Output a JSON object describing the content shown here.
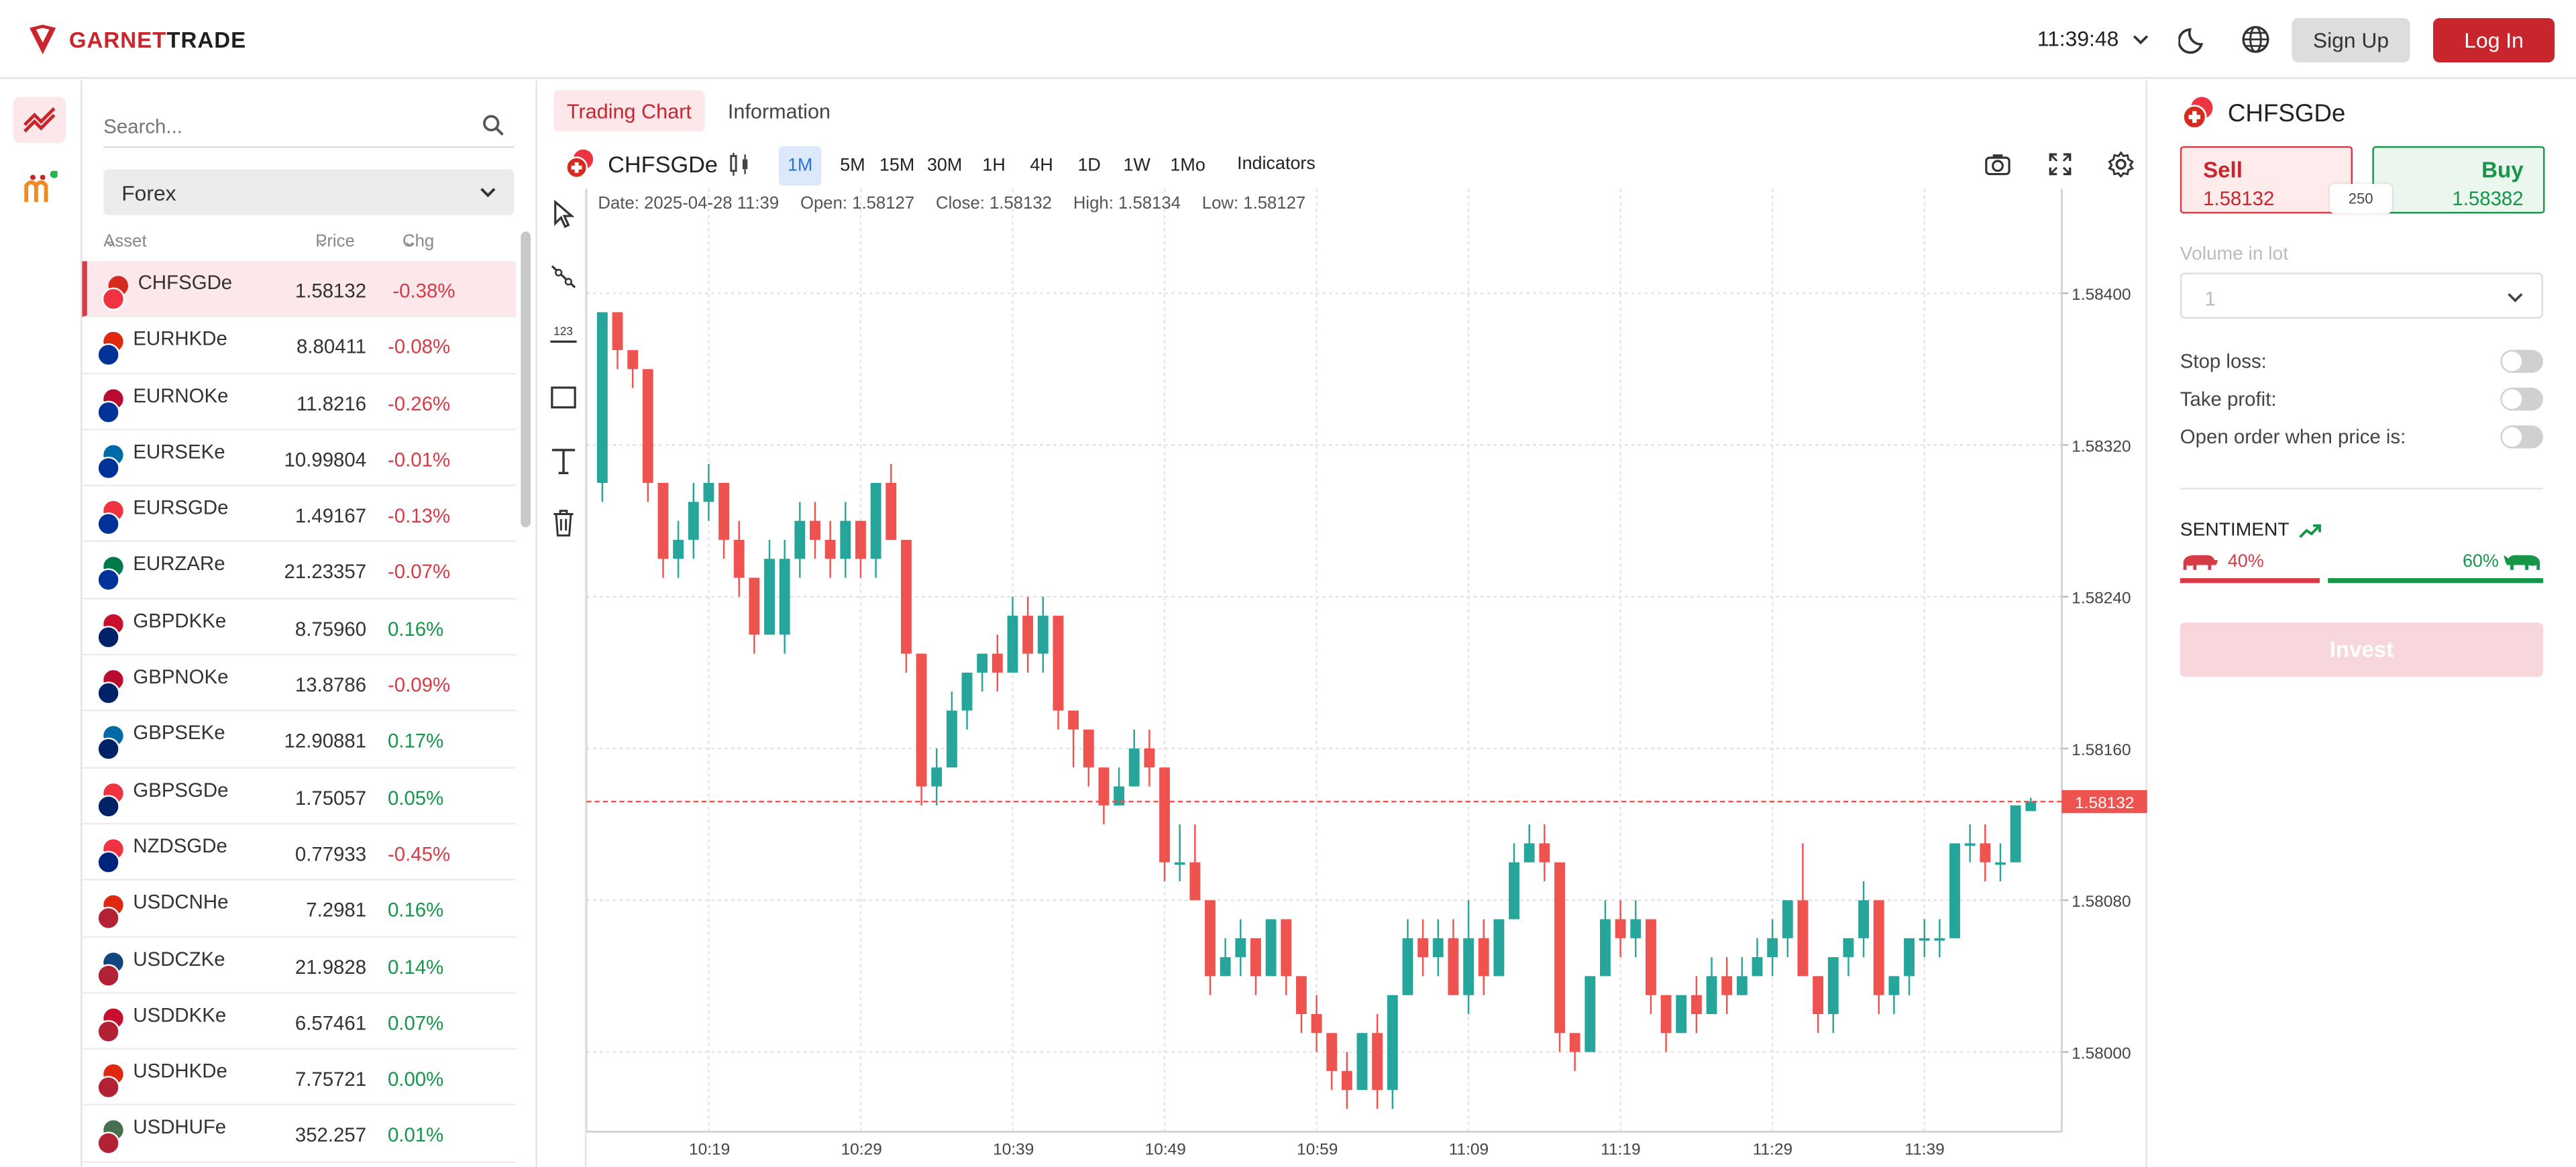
{
  "header": {
    "brand_prefix": "GARNET",
    "brand_suffix": "TRADE",
    "time": "11:39:48",
    "signup_label": "Sign Up",
    "login_label": "Log In"
  },
  "left_panel": {
    "search_placeholder": "Search...",
    "category": "Forex",
    "columns": {
      "asset": "Asset",
      "price": "Price",
      "chg": "Chg"
    },
    "rows": [
      {
        "name": "CHFSGDe",
        "price": "1.58132",
        "chg": "-0.38%",
        "up": false,
        "c1": "#d52b1e",
        "c2": "#ef3340"
      },
      {
        "name": "EURHKDe",
        "price": "8.80411",
        "chg": "-0.08%",
        "up": false,
        "c1": "#de2910",
        "c2": "#003399"
      },
      {
        "name": "EURNOKe",
        "price": "11.8216",
        "chg": "-0.26%",
        "up": false,
        "c1": "#ba0c2f",
        "c2": "#003399"
      },
      {
        "name": "EURSEKe",
        "price": "10.99804",
        "chg": "-0.01%",
        "up": false,
        "c1": "#006aa7",
        "c2": "#003399"
      },
      {
        "name": "EURSGDe",
        "price": "1.49167",
        "chg": "-0.13%",
        "up": false,
        "c1": "#ef3340",
        "c2": "#003399"
      },
      {
        "name": "EURZARe",
        "price": "21.23357",
        "chg": "-0.07%",
        "up": false,
        "c1": "#007a4d",
        "c2": "#003399"
      },
      {
        "name": "GBPDKKe",
        "price": "8.75960",
        "chg": "0.16%",
        "up": true,
        "c1": "#c8102e",
        "c2": "#012169"
      },
      {
        "name": "GBPNOKe",
        "price": "13.8786",
        "chg": "-0.09%",
        "up": false,
        "c1": "#ba0c2f",
        "c2": "#012169"
      },
      {
        "name": "GBPSEKe",
        "price": "12.90881",
        "chg": "0.17%",
        "up": true,
        "c1": "#006aa7",
        "c2": "#012169"
      },
      {
        "name": "GBPSGDe",
        "price": "1.75057",
        "chg": "0.05%",
        "up": true,
        "c1": "#ef3340",
        "c2": "#012169"
      },
      {
        "name": "NZDSGDe",
        "price": "0.77933",
        "chg": "-0.45%",
        "up": false,
        "c1": "#ef3340",
        "c2": "#00247d"
      },
      {
        "name": "USDCNHe",
        "price": "7.2981",
        "chg": "0.16%",
        "up": true,
        "c1": "#de2910",
        "c2": "#b22234"
      },
      {
        "name": "USDCZKe",
        "price": "21.9828",
        "chg": "0.14%",
        "up": true,
        "c1": "#11457e",
        "c2": "#b22234"
      },
      {
        "name": "USDDKKe",
        "price": "6.57461",
        "chg": "0.07%",
        "up": true,
        "c1": "#c8102e",
        "c2": "#b22234"
      },
      {
        "name": "USDHKDe",
        "price": "7.75721",
        "chg": "0.00%",
        "up": true,
        "c1": "#de2910",
        "c2": "#b22234"
      },
      {
        "name": "USDHUFe",
        "price": "352.257",
        "chg": "0.01%",
        "up": true,
        "c1": "#477050",
        "c2": "#b22234"
      }
    ]
  },
  "center": {
    "tab_chart": "Trading Chart",
    "tab_info": "Information",
    "symbol": "CHFSGDe",
    "timeframes": [
      "1M",
      "5M",
      "15M",
      "30M",
      "1H",
      "4H",
      "1D",
      "1W",
      "1Mo"
    ],
    "active_timeframe": "1M",
    "indicators_label": "Indicators",
    "info": {
      "date": "Date: 2025-04-28 11:39",
      "open": "Open: 1.58127",
      "close": "Close: 1.58132",
      "high": "High: 1.58134",
      "low": "Low: 1.58127"
    }
  },
  "chart_data": {
    "type": "candlestick",
    "x_ticks": [
      "10:19",
      "10:29",
      "10:39",
      "10:49",
      "10:59",
      "11:09",
      "11:19",
      "11:29",
      "11:39"
    ],
    "y_ticks": [
      "1.58400",
      "1.58320",
      "1.58240",
      "1.58160",
      "1.58080",
      "1.58000"
    ],
    "y_range": [
      1.57958,
      1.58455
    ],
    "current_price": "1.58132",
    "up_color": "#26a69a",
    "down_color": "#ef5350",
    "candles": [
      [
        1.583,
        1.5839,
        1.5839,
        1.5829
      ],
      [
        1.5839,
        1.5837,
        1.5839,
        1.5836
      ],
      [
        1.5837,
        1.5836,
        1.5837,
        1.5835
      ],
      [
        1.5836,
        1.583,
        1.5836,
        1.5829
      ],
      [
        1.583,
        1.5826,
        1.583,
        1.5825
      ],
      [
        1.5826,
        1.5827,
        1.5828,
        1.5825
      ],
      [
        1.5827,
        1.5829,
        1.583,
        1.5826
      ],
      [
        1.5829,
        1.583,
        1.5831,
        1.5828
      ],
      [
        1.583,
        1.5827,
        1.583,
        1.5826
      ],
      [
        1.5827,
        1.5825,
        1.5828,
        1.5824
      ],
      [
        1.5825,
        1.5822,
        1.5825,
        1.5821
      ],
      [
        1.5822,
        1.5826,
        1.5827,
        1.5822
      ],
      [
        1.5822,
        1.5826,
        1.5827,
        1.5821
      ],
      [
        1.5826,
        1.5828,
        1.5829,
        1.5825
      ],
      [
        1.5828,
        1.5827,
        1.5829,
        1.5826
      ],
      [
        1.5827,
        1.5826,
        1.5828,
        1.5825
      ],
      [
        1.5826,
        1.5828,
        1.5829,
        1.5825
      ],
      [
        1.5828,
        1.5826,
        1.5828,
        1.5825
      ],
      [
        1.5826,
        1.583,
        1.583,
        1.5825
      ],
      [
        1.583,
        1.5827,
        1.5831,
        1.5827
      ],
      [
        1.5827,
        1.5821,
        1.5827,
        1.582
      ],
      [
        1.5821,
        1.5814,
        1.5821,
        1.5813
      ],
      [
        1.5814,
        1.5815,
        1.5816,
        1.5813
      ],
      [
        1.5815,
        1.5818,
        1.5819,
        1.5815
      ],
      [
        1.5818,
        1.582,
        1.582,
        1.5817
      ],
      [
        1.582,
        1.5821,
        1.5821,
        1.5819
      ],
      [
        1.5821,
        1.582,
        1.5822,
        1.5819
      ],
      [
        1.582,
        1.5823,
        1.5824,
        1.582
      ],
      [
        1.5823,
        1.5821,
        1.5824,
        1.582
      ],
      [
        1.5821,
        1.5823,
        1.5824,
        1.582
      ],
      [
        1.5823,
        1.5818,
        1.5823,
        1.5817
      ],
      [
        1.5818,
        1.5817,
        1.5818,
        1.5815
      ],
      [
        1.5817,
        1.5815,
        1.5817,
        1.5814
      ],
      [
        1.5815,
        1.5813,
        1.5815,
        1.5812
      ],
      [
        1.5813,
        1.5814,
        1.5815,
        1.5813
      ],
      [
        1.5814,
        1.5816,
        1.5817,
        1.5814
      ],
      [
        1.5816,
        1.5815,
        1.5817,
        1.5814
      ],
      [
        1.5815,
        1.581,
        1.5815,
        1.5809
      ],
      [
        1.581,
        1.581,
        1.5812,
        1.5809
      ],
      [
        1.581,
        1.5808,
        1.5812,
        1.5808
      ],
      [
        1.5808,
        1.5804,
        1.5808,
        1.5803
      ],
      [
        1.5804,
        1.5805,
        1.5806,
        1.5804
      ],
      [
        1.5805,
        1.5806,
        1.5807,
        1.5804
      ],
      [
        1.5806,
        1.5804,
        1.5806,
        1.5803
      ],
      [
        1.5804,
        1.5807,
        1.5807,
        1.5804
      ],
      [
        1.5807,
        1.5804,
        1.5807,
        1.5803
      ],
      [
        1.5804,
        1.5802,
        1.5804,
        1.5801
      ],
      [
        1.5802,
        1.5801,
        1.5803,
        1.58
      ],
      [
        1.5801,
        1.5799,
        1.5801,
        1.5798
      ],
      [
        1.5799,
        1.5798,
        1.58,
        1.5797
      ],
      [
        1.5798,
        1.5801,
        1.5801,
        1.5798
      ],
      [
        1.5801,
        1.5798,
        1.5802,
        1.5797
      ],
      [
        1.5798,
        1.5803,
        1.5803,
        1.5797
      ],
      [
        1.5803,
        1.5806,
        1.5807,
        1.5803
      ],
      [
        1.5806,
        1.5805,
        1.5807,
        1.5804
      ],
      [
        1.5805,
        1.5806,
        1.5807,
        1.5804
      ],
      [
        1.5806,
        1.5803,
        1.5807,
        1.5803
      ],
      [
        1.5803,
        1.5806,
        1.5808,
        1.5802
      ],
      [
        1.5806,
        1.5804,
        1.5807,
        1.5803
      ],
      [
        1.5804,
        1.5807,
        1.5807,
        1.5804
      ],
      [
        1.5807,
        1.581,
        1.5811,
        1.5807
      ],
      [
        1.581,
        1.5811,
        1.5812,
        1.581
      ],
      [
        1.5811,
        1.581,
        1.5812,
        1.5809
      ],
      [
        1.581,
        1.5801,
        1.581,
        1.58
      ],
      [
        1.5801,
        1.58,
        1.5801,
        1.5799
      ],
      [
        1.58,
        1.5804,
        1.5804,
        1.58
      ],
      [
        1.5804,
        1.5807,
        1.5808,
        1.5804
      ],
      [
        1.5807,
        1.5806,
        1.5808,
        1.5805
      ],
      [
        1.5806,
        1.5807,
        1.5808,
        1.5805
      ],
      [
        1.5807,
        1.5803,
        1.5807,
        1.5802
      ],
      [
        1.5803,
        1.5801,
        1.5803,
        1.58
      ],
      [
        1.5801,
        1.5803,
        1.5803,
        1.5801
      ],
      [
        1.5803,
        1.5802,
        1.5804,
        1.5801
      ],
      [
        1.5802,
        1.5804,
        1.5805,
        1.5802
      ],
      [
        1.5804,
        1.5803,
        1.5805,
        1.5802
      ],
      [
        1.5803,
        1.5804,
        1.5805,
        1.5803
      ],
      [
        1.5804,
        1.5805,
        1.5806,
        1.5804
      ],
      [
        1.5805,
        1.5806,
        1.5807,
        1.5804
      ],
      [
        1.5806,
        1.5808,
        1.5808,
        1.5805
      ],
      [
        1.5808,
        1.5804,
        1.5811,
        1.5804
      ],
      [
        1.5804,
        1.5802,
        1.5804,
        1.5801
      ],
      [
        1.5802,
        1.5805,
        1.5805,
        1.5801
      ],
      [
        1.5805,
        1.5806,
        1.5806,
        1.5804
      ],
      [
        1.5806,
        1.5808,
        1.5809,
        1.5805
      ],
      [
        1.5808,
        1.5803,
        1.5808,
        1.5802
      ],
      [
        1.5803,
        1.5804,
        1.5804,
        1.5802
      ],
      [
        1.5804,
        1.5806,
        1.5806,
        1.5803
      ],
      [
        1.5806,
        1.5806,
        1.5807,
        1.5805
      ],
      [
        1.5806,
        1.5806,
        1.5807,
        1.5805
      ],
      [
        1.5806,
        1.5811,
        1.5811,
        1.5806
      ],
      [
        1.5811,
        1.5811,
        1.5812,
        1.581
      ],
      [
        1.5811,
        1.581,
        1.5812,
        1.5809
      ],
      [
        1.581,
        1.581,
        1.5811,
        1.5809
      ],
      [
        1.581,
        1.5813,
        1.5813,
        1.581
      ],
      [
        1.58127,
        1.58132,
        1.58134,
        1.58127
      ]
    ]
  },
  "right_panel": {
    "symbol": "CHFSGDe",
    "sell_label": "Sell",
    "sell_price": "1.58132",
    "buy_label": "Buy",
    "buy_price": "1.58382",
    "spread": "250",
    "volume_label": "Volume in lot",
    "volume_value": "1",
    "stop_loss": "Stop loss:",
    "take_profit": "Take profit:",
    "open_order": "Open order when price is:",
    "sentiment_label": "SENTIMENT",
    "bear_pct": "40%",
    "bull_pct": "60%",
    "bear_fraction": 0.4,
    "bull_fraction": 0.6,
    "invest_label": "Invest"
  },
  "colors": {
    "brand": "#c8262c",
    "up": "#17964a",
    "down": "#d63c45"
  }
}
